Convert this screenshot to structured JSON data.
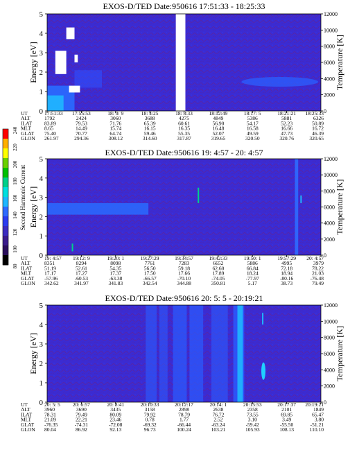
{
  "colorbar": {
    "label": "Second Harmonic Current",
    "ticks": [
      "80",
      "100",
      "120",
      "140",
      "160",
      "180",
      "200",
      "220",
      "240"
    ],
    "colors": [
      "#000000",
      "#2a0f5c",
      "#3a1c8c",
      "#3b2cc0",
      "#2b3cf0",
      "#2f6bff",
      "#1fb7ff",
      "#00e0e0",
      "#00d08a",
      "#00c000",
      "#6ad000",
      "#ffff00",
      "#ffb000",
      "#ff0000"
    ]
  },
  "chart_data": [
    {
      "type": "heatmap",
      "title": "EXOS-D/TED   Date:950616  17:51:33 - 18:25:33",
      "ylabel": "Energy [eV]",
      "y2label": "Temperature [K]",
      "ylim": [
        0,
        5
      ],
      "y2lim": [
        0,
        12000
      ],
      "yticks": [
        "0",
        "1",
        "2",
        "3",
        "4",
        "5"
      ],
      "y2ticks": [
        "0",
        "2000",
        "4000",
        "6000",
        "8000",
        "10000",
        "12000"
      ],
      "row_labels": [
        "UT",
        "ALT",
        "ILAT",
        "MLT",
        "GLAT",
        "GLON"
      ],
      "columns": [
        [
          "17:51:33",
          "1792",
          "83.89",
          "8.65",
          "75.40",
          "261.97"
        ],
        [
          "17:55:53",
          "2424",
          "79.53",
          "14.49",
          "70.77",
          "294.36"
        ],
        [
          "18: 0: 9",
          "3060",
          "71.76",
          "15.74",
          "64.74",
          "308.12"
        ],
        [
          "18: 4:25",
          "3688",
          "65.39",
          "16.15",
          "59.46",
          "314.60"
        ],
        [
          "18: 8:33",
          "4275",
          "60.61",
          "16.35",
          "55.35",
          "317.87"
        ],
        [
          "18:12:49",
          "4849",
          "56.90",
          "16.48",
          "52.07",
          "319.65"
        ],
        [
          "18:17: 5",
          "5386",
          "54.17",
          "16.58",
          "49.59",
          "320.50"
        ],
        [
          "18:21:21",
          "5881",
          "52.23",
          "16.66",
          "47.73",
          "320.76"
        ],
        [
          "18:25:33",
          "6326",
          "50.89",
          "16.72",
          "46.39",
          "320.65"
        ]
      ],
      "features": {
        "data_gap": [
          0.47,
          0.505
        ],
        "background": "#3a2ad0"
      }
    },
    {
      "type": "heatmap",
      "title": "EXOS-D/TED   Date:950616  19: 4:57 - 20: 4:57",
      "ylabel": "Energy [eV]",
      "y2label": "Temperature [K]",
      "ylim": [
        0,
        5
      ],
      "y2lim": [
        0,
        12000
      ],
      "yticks": [
        "0",
        "1",
        "2",
        "3",
        "4",
        "5"
      ],
      "y2ticks": [
        "0",
        "2000",
        "4000",
        "6000",
        "8000",
        "10000",
        "12000"
      ],
      "row_labels": [
        "UT",
        "ALT",
        "ILAT",
        "MLT",
        "GLAT",
        "GLON"
      ],
      "columns": [
        [
          "19: 4:57",
          "8351",
          "51.19",
          "17.17",
          "-57.96",
          "342.62"
        ],
        [
          "19:12: 9",
          "8294",
          "52.61",
          "17.27",
          "-60.53",
          "341.97"
        ],
        [
          "19:20: 1",
          "8098",
          "54.35",
          "17.37",
          "-63.38",
          "341.83"
        ],
        [
          "19:27:29",
          "7761",
          "56.50",
          "17.50",
          "-66.57",
          "342.54"
        ],
        [
          "19:34:57",
          "7283",
          "59.18",
          "17.66",
          "-70.10",
          "344.88"
        ],
        [
          "19:42:33",
          "6652",
          "62.60",
          "17.89",
          "-74.05",
          "350.81"
        ],
        [
          "19:50: 1",
          "5886",
          "66.84",
          "18.24",
          "-77.97",
          "5.17"
        ],
        [
          "19:57:29",
          "4995",
          "72.18",
          "18.94",
          "-80.16",
          "38.73"
        ],
        [
          "20: 4:57",
          "3979",
          "78.22",
          "21.03",
          "-76.48",
          "79.49"
        ]
      ],
      "features": {
        "background": "#3a2ad0"
      }
    },
    {
      "type": "heatmap",
      "title": "EXOS-D/TED   Date:950616  20: 5: 5 - 20:19:21",
      "ylabel": "Energy [eV]",
      "y2label": "Temperature [K]",
      "ylim": [
        0,
        5
      ],
      "y2lim": [
        0,
        12000
      ],
      "yticks": [
        "0",
        "1",
        "2",
        "3",
        "4",
        "5"
      ],
      "y2ticks": [
        "0",
        "2000",
        "4000",
        "6000",
        "8000",
        "10000",
        "12000"
      ],
      "row_labels": [
        "UT",
        "ALT",
        "ILAT",
        "MLT",
        "GLAT",
        "GLON"
      ],
      "columns": [
        [
          "20: 5: 5",
          "3960",
          "78.31",
          "21.09",
          "-76.35",
          "80.04"
        ],
        [
          "20: 6:57",
          "3690",
          "79.49",
          "22.21",
          "-74.31",
          "86.92"
        ],
        [
          "20: 8:41",
          "3435",
          "80.09",
          "23.46",
          "-72.08",
          "92.13"
        ],
        [
          "20:10:33",
          "3158",
          "79.92",
          "0.78",
          "-69.32",
          "96.73"
        ],
        [
          "20:12:17",
          "2898",
          "78.79",
          "1.77",
          "-66.44",
          "100.24"
        ],
        [
          "20:14: 1",
          "2638",
          "76.72",
          "2.52",
          "-63.24",
          "103.21"
        ],
        [
          "20:15:53",
          "2358",
          "73.55",
          "3.10",
          "-59.42",
          "105.93"
        ],
        [
          "20:17:37",
          "2101",
          "69.85",
          "3.49",
          "-55.50",
          "108.13"
        ],
        [
          "20:19:21",
          "1849",
          "65.47",
          "3.80",
          "-51.21",
          "110.10"
        ]
      ],
      "features": {
        "background": "#3a2ad0"
      }
    }
  ]
}
